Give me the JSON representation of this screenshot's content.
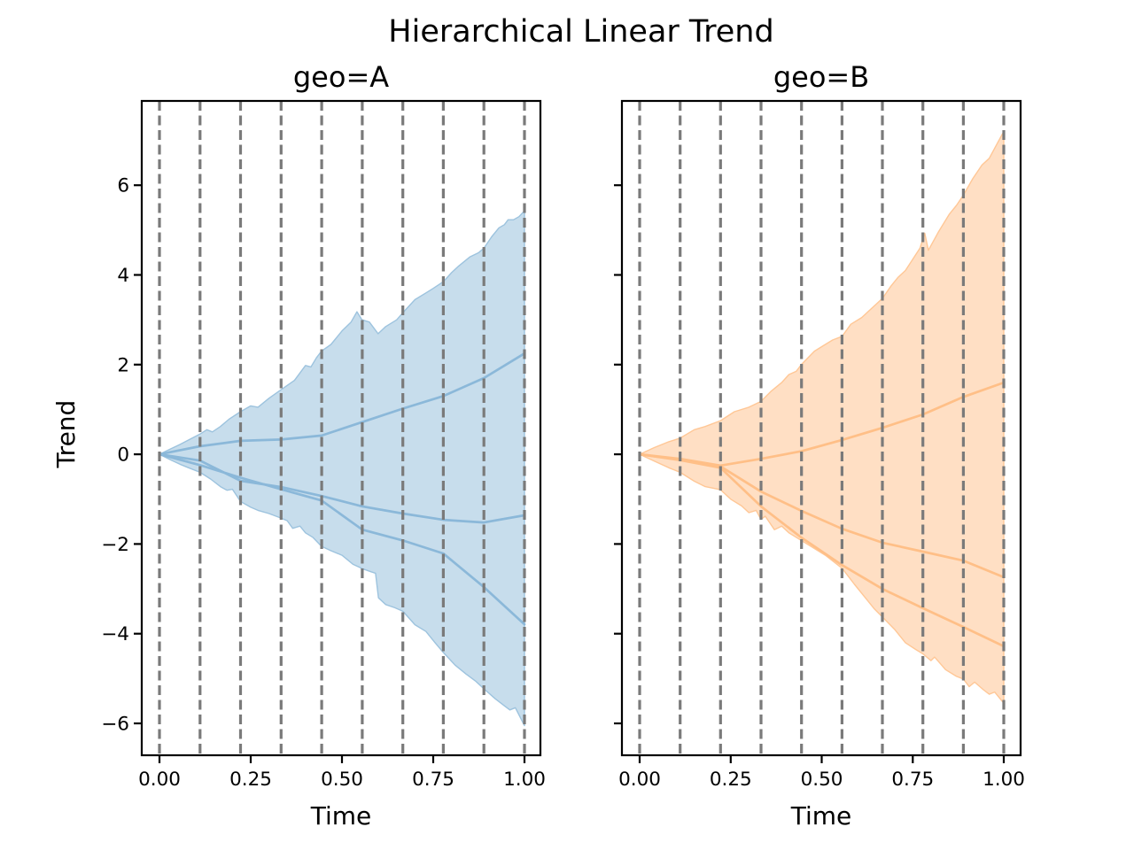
{
  "figure": {
    "title": "Hierarchical Linear Trend"
  },
  "style": {
    "grid_color": "#7a7a7a",
    "spine_color": "#000000",
    "blue_line": "#8bb8d9",
    "blue_band": "#c7ddec",
    "orange_line": "#ffbf87",
    "orange_band": "#ffdfc4"
  },
  "chart_data": [
    {
      "type": "area",
      "title": "geo=A",
      "xlabel": "Time",
      "ylabel": "Trend",
      "legend": null,
      "grid": "vertical-dashed-changepoints",
      "xlim": [
        -0.0485,
        1.0437
      ],
      "ylim": [
        -6.71,
        7.88
      ],
      "x_ticks": [
        "0.00",
        "0.25",
        "0.50",
        "0.75",
        "1.00"
      ],
      "x_tick_values": [
        0,
        0.25,
        0.5,
        0.75,
        1.0
      ],
      "y_ticks": [
        "6",
        "4",
        "2",
        "0",
        "−2",
        "−4",
        "−6"
      ],
      "y_tick_values": [
        6,
        4,
        2,
        0,
        -2,
        -4,
        -6
      ],
      "show_y_tick_labels": true,
      "changepoints": [
        0,
        0.1111,
        0.2222,
        0.3333,
        0.4444,
        0.5556,
        0.6667,
        0.7778,
        0.8889,
        1.0
      ],
      "colors": {
        "line": "#8bb8d9",
        "band_fill": "#c7ddec",
        "band_edge": "#9dc3de"
      },
      "line_x": [
        0,
        0.1111,
        0.2222,
        0.3333,
        0.4444,
        0.5556,
        0.6667,
        0.7778,
        0.8889,
        1.0
      ],
      "lines": [
        {
          "name": "trend-draw-upper",
          "y": [
            0,
            0.18,
            0.3,
            0.33,
            0.42,
            0.72,
            1.02,
            1.3,
            1.7,
            2.25
          ]
        },
        {
          "name": "trend-draw-middle",
          "y": [
            0,
            -0.14,
            -0.59,
            -0.73,
            -0.93,
            -1.16,
            -1.32,
            -1.46,
            -1.52,
            -1.36
          ]
        },
        {
          "name": "trend-draw-lower",
          "y": [
            0,
            -0.24,
            -0.52,
            -0.78,
            -1.03,
            -1.68,
            -1.92,
            -2.21,
            -2.96,
            -3.79
          ]
        }
      ],
      "band": {
        "upper": [
          [
            0,
            0
          ],
          [
            0.03,
            0.12
          ],
          [
            0.056,
            0.22
          ],
          [
            0.08,
            0.32
          ],
          [
            0.111,
            0.45
          ],
          [
            0.13,
            0.55
          ],
          [
            0.145,
            0.5
          ],
          [
            0.167,
            0.62
          ],
          [
            0.19,
            0.78
          ],
          [
            0.222,
            0.95
          ],
          [
            0.25,
            1.08
          ],
          [
            0.27,
            1.05
          ],
          [
            0.3,
            1.25
          ],
          [
            0.333,
            1.44
          ],
          [
            0.37,
            1.65
          ],
          [
            0.4,
            1.98
          ],
          [
            0.415,
            1.95
          ],
          [
            0.43,
            2.15
          ],
          [
            0.444,
            2.3
          ],
          [
            0.47,
            2.45
          ],
          [
            0.5,
            2.75
          ],
          [
            0.525,
            2.95
          ],
          [
            0.541,
            3.18
          ],
          [
            0.555,
            3.0
          ],
          [
            0.575,
            2.95
          ],
          [
            0.599,
            2.69
          ],
          [
            0.62,
            2.85
          ],
          [
            0.65,
            3.0
          ],
          [
            0.667,
            3.16
          ],
          [
            0.7,
            3.45
          ],
          [
            0.73,
            3.6
          ],
          [
            0.75,
            3.7
          ],
          [
            0.778,
            3.85
          ],
          [
            0.8,
            4.05
          ],
          [
            0.82,
            4.2
          ],
          [
            0.85,
            4.4
          ],
          [
            0.875,
            4.5
          ],
          [
            0.889,
            4.6
          ],
          [
            0.91,
            4.85
          ],
          [
            0.93,
            5.05
          ],
          [
            0.945,
            5.12
          ],
          [
            0.955,
            5.23
          ],
          [
            0.97,
            5.23
          ],
          [
            0.985,
            5.3
          ],
          [
            1,
            5.43
          ]
        ],
        "lower": [
          [
            0,
            0
          ],
          [
            0.03,
            -0.12
          ],
          [
            0.056,
            -0.22
          ],
          [
            0.08,
            -0.3
          ],
          [
            0.111,
            -0.4
          ],
          [
            0.14,
            -0.55
          ],
          [
            0.167,
            -0.72
          ],
          [
            0.185,
            -0.8
          ],
          [
            0.2,
            -0.78
          ],
          [
            0.222,
            -1.05
          ],
          [
            0.25,
            -1.18
          ],
          [
            0.27,
            -1.25
          ],
          [
            0.3,
            -1.32
          ],
          [
            0.333,
            -1.42
          ],
          [
            0.35,
            -1.48
          ],
          [
            0.365,
            -1.65
          ],
          [
            0.385,
            -1.6
          ],
          [
            0.4,
            -1.75
          ],
          [
            0.42,
            -1.85
          ],
          [
            0.444,
            -2.05
          ],
          [
            0.47,
            -2.15
          ],
          [
            0.5,
            -2.25
          ],
          [
            0.53,
            -2.45
          ],
          [
            0.556,
            -2.55
          ],
          [
            0.58,
            -2.62
          ],
          [
            0.592,
            -2.65
          ],
          [
            0.6,
            -3.2
          ],
          [
            0.62,
            -3.35
          ],
          [
            0.645,
            -3.42
          ],
          [
            0.667,
            -3.5
          ],
          [
            0.7,
            -3.8
          ],
          [
            0.73,
            -3.95
          ],
          [
            0.755,
            -4.2
          ],
          [
            0.778,
            -4.42
          ],
          [
            0.81,
            -4.7
          ],
          [
            0.84,
            -4.9
          ],
          [
            0.865,
            -5.05
          ],
          [
            0.889,
            -5.23
          ],
          [
            0.92,
            -5.45
          ],
          [
            0.944,
            -5.6
          ],
          [
            0.96,
            -5.7
          ],
          [
            0.975,
            -5.65
          ],
          [
            1,
            -6.05
          ]
        ]
      }
    },
    {
      "type": "area",
      "title": "geo=B",
      "xlabel": "Time",
      "ylabel": null,
      "legend": null,
      "grid": "vertical-dashed-changepoints",
      "xlim": [
        -0.0487,
        1.0462
      ],
      "ylim": [
        -6.71,
        7.88
      ],
      "x_ticks": [
        "0.00",
        "0.25",
        "0.50",
        "0.75",
        "1.00"
      ],
      "x_tick_values": [
        0,
        0.25,
        0.5,
        0.75,
        1.0
      ],
      "y_ticks": [
        "6",
        "4",
        "2",
        "0",
        "−2",
        "−4",
        "−6"
      ],
      "y_tick_values": [
        6,
        4,
        2,
        0,
        -2,
        -4,
        -6
      ],
      "show_y_tick_labels": false,
      "changepoints": [
        0,
        0.1111,
        0.2222,
        0.3333,
        0.4444,
        0.5556,
        0.6667,
        0.7778,
        0.8889,
        1.0
      ],
      "colors": {
        "line": "#ffbf87",
        "band_fill": "#ffdfc4",
        "band_edge": "#ffc796"
      },
      "line_x": [
        0,
        0.1111,
        0.2222,
        0.3333,
        0.4444,
        0.5556,
        0.6667,
        0.7778,
        0.8889,
        1.0
      ],
      "lines": [
        {
          "name": "trend-draw-upper",
          "y": [
            0,
            -0.1,
            -0.25,
            -0.1,
            0.07,
            0.32,
            0.59,
            0.89,
            1.28,
            1.6
          ]
        },
        {
          "name": "trend-draw-middle",
          "y": [
            0,
            -0.12,
            -0.27,
            -0.83,
            -1.26,
            -1.66,
            -1.97,
            -2.17,
            -2.37,
            -2.74
          ]
        },
        {
          "name": "trend-draw-lower",
          "y": [
            0,
            -0.13,
            -0.3,
            -1.16,
            -1.86,
            -2.47,
            -3.0,
            -3.43,
            -3.85,
            -4.28
          ]
        }
      ],
      "band": {
        "upper": [
          [
            0,
            0
          ],
          [
            0.04,
            0.15
          ],
          [
            0.08,
            0.28
          ],
          [
            0.111,
            0.36
          ],
          [
            0.15,
            0.55
          ],
          [
            0.18,
            0.62
          ],
          [
            0.222,
            0.75
          ],
          [
            0.26,
            0.95
          ],
          [
            0.3,
            1.05
          ],
          [
            0.333,
            1.18
          ],
          [
            0.36,
            1.4
          ],
          [
            0.39,
            1.6
          ],
          [
            0.41,
            1.78
          ],
          [
            0.43,
            1.85
          ],
          [
            0.444,
            2.0
          ],
          [
            0.48,
            2.3
          ],
          [
            0.51,
            2.45
          ],
          [
            0.53,
            2.55
          ],
          [
            0.556,
            2.63
          ],
          [
            0.58,
            2.9
          ],
          [
            0.61,
            3.05
          ],
          [
            0.63,
            3.2
          ],
          [
            0.667,
            3.48
          ],
          [
            0.69,
            3.75
          ],
          [
            0.71,
            3.95
          ],
          [
            0.73,
            4.1
          ],
          [
            0.75,
            4.35
          ],
          [
            0.77,
            4.6
          ],
          [
            0.783,
            4.93
          ],
          [
            0.793,
            4.55
          ],
          [
            0.82,
            4.95
          ],
          [
            0.85,
            5.35
          ],
          [
            0.87,
            5.55
          ],
          [
            0.889,
            5.78
          ],
          [
            0.915,
            6.15
          ],
          [
            0.94,
            6.45
          ],
          [
            0.96,
            6.6
          ],
          [
            0.98,
            6.9
          ],
          [
            1,
            7.2
          ]
        ],
        "lower": [
          [
            0,
            0
          ],
          [
            0.04,
            -0.15
          ],
          [
            0.08,
            -0.3
          ],
          [
            0.111,
            -0.4
          ],
          [
            0.15,
            -0.6
          ],
          [
            0.18,
            -0.72
          ],
          [
            0.222,
            -0.79
          ],
          [
            0.25,
            -1.0
          ],
          [
            0.28,
            -1.15
          ],
          [
            0.3,
            -1.3
          ],
          [
            0.32,
            -1.25
          ],
          [
            0.333,
            -1.45
          ],
          [
            0.345,
            -1.38
          ],
          [
            0.37,
            -1.68
          ],
          [
            0.39,
            -1.6
          ],
          [
            0.41,
            -1.75
          ],
          [
            0.444,
            -1.92
          ],
          [
            0.48,
            -2.1
          ],
          [
            0.51,
            -2.25
          ],
          [
            0.556,
            -2.54
          ],
          [
            0.59,
            -2.9
          ],
          [
            0.62,
            -3.2
          ],
          [
            0.645,
            -3.45
          ],
          [
            0.667,
            -3.63
          ],
          [
            0.7,
            -3.9
          ],
          [
            0.73,
            -4.2
          ],
          [
            0.758,
            -4.35
          ],
          [
            0.778,
            -4.45
          ],
          [
            0.8,
            -4.6
          ],
          [
            0.81,
            -4.52
          ],
          [
            0.84,
            -4.8
          ],
          [
            0.87,
            -4.95
          ],
          [
            0.889,
            -5.01
          ],
          [
            0.905,
            -5.18
          ],
          [
            0.92,
            -5.08
          ],
          [
            0.944,
            -5.25
          ],
          [
            0.96,
            -5.35
          ],
          [
            0.975,
            -5.3
          ],
          [
            1,
            -5.55
          ]
        ]
      }
    }
  ]
}
